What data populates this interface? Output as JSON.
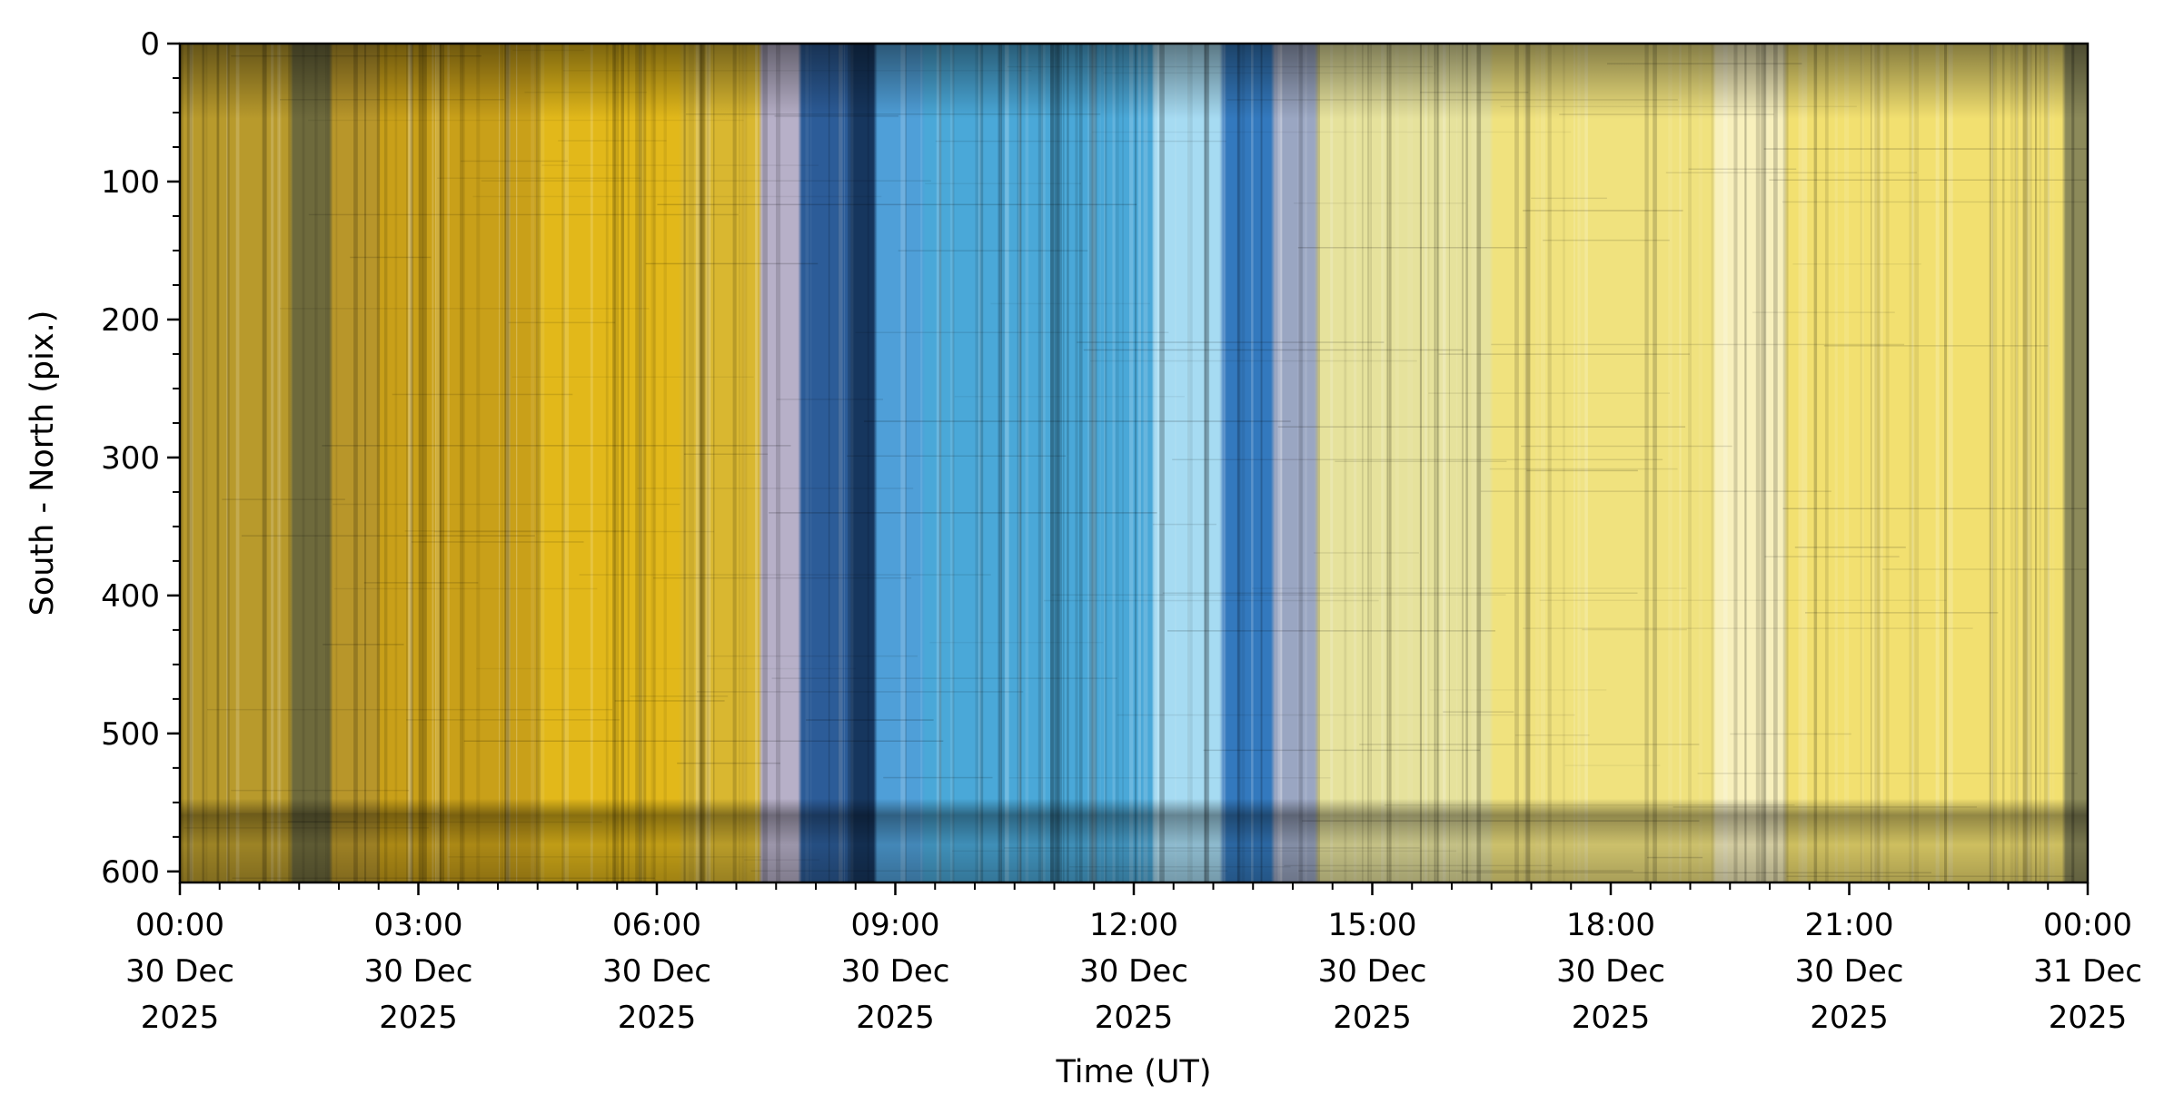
{
  "chart_data": {
    "type": "heatmap",
    "title": "",
    "xlabel": "Time (UT)",
    "ylabel": "South - North (pix.)",
    "x_unit": "hours since 30 Dec 2025 00:00 UT",
    "xlim": [
      0,
      24
    ],
    "ylim": [
      608,
      0
    ],
    "x_ticks": [
      {
        "value": 0,
        "lines": [
          "00:00",
          "30 Dec",
          "2025"
        ]
      },
      {
        "value": 3,
        "lines": [
          "03:00",
          "30 Dec",
          "2025"
        ]
      },
      {
        "value": 6,
        "lines": [
          "06:00",
          "30 Dec",
          "2025"
        ]
      },
      {
        "value": 9,
        "lines": [
          "09:00",
          "30 Dec",
          "2025"
        ]
      },
      {
        "value": 12,
        "lines": [
          "12:00",
          "30 Dec",
          "2025"
        ]
      },
      {
        "value": 15,
        "lines": [
          "15:00",
          "30 Dec",
          "2025"
        ]
      },
      {
        "value": 18,
        "lines": [
          "18:00",
          "30 Dec",
          "2025"
        ]
      },
      {
        "value": 21,
        "lines": [
          "21:00",
          "30 Dec",
          "2025"
        ]
      },
      {
        "value": 24,
        "lines": [
          "00:00",
          "31 Dec",
          "2025"
        ]
      }
    ],
    "x_minor_step": 0.5,
    "y_ticks": [
      0,
      100,
      200,
      300,
      400,
      500,
      600
    ],
    "y_minor_step": 25,
    "grid": false,
    "legend": "none",
    "bands": [
      {
        "start": 0.0,
        "end": 1.4,
        "color": "#b89a2c"
      },
      {
        "start": 1.4,
        "end": 1.9,
        "color": "#6e6a3c"
      },
      {
        "start": 1.9,
        "end": 2.5,
        "color": "#b8962a"
      },
      {
        "start": 2.5,
        "end": 4.5,
        "color": "#c9a019"
      },
      {
        "start": 4.5,
        "end": 6.3,
        "color": "#e2b81a"
      },
      {
        "start": 6.3,
        "end": 7.3,
        "color": "#d9b730"
      },
      {
        "start": 7.3,
        "end": 7.8,
        "color": "#b7b0c8"
      },
      {
        "start": 7.8,
        "end": 8.45,
        "color": "#2c5c98"
      },
      {
        "start": 8.45,
        "end": 8.75,
        "color": "#16365e"
      },
      {
        "start": 8.75,
        "end": 9.35,
        "color": "#4f9fd8"
      },
      {
        "start": 9.35,
        "end": 12.25,
        "color": "#4aa8d8"
      },
      {
        "start": 12.25,
        "end": 13.1,
        "color": "#a6dbf2"
      },
      {
        "start": 13.1,
        "end": 13.75,
        "color": "#3379be"
      },
      {
        "start": 13.75,
        "end": 14.3,
        "color": "#9aa6c2"
      },
      {
        "start": 14.3,
        "end": 16.5,
        "color": "#e6e29c"
      },
      {
        "start": 16.5,
        "end": 19.3,
        "color": "#f0e27e"
      },
      {
        "start": 19.3,
        "end": 20.2,
        "color": "#f8f0bc"
      },
      {
        "start": 20.2,
        "end": 23.7,
        "color": "#f2e070"
      },
      {
        "start": 23.7,
        "end": 24.0,
        "color": "#8c8a5a"
      }
    ],
    "horizontal_features": [
      {
        "y_start": 0,
        "y_end": 55,
        "kind": "dark band"
      },
      {
        "y_start": 555,
        "y_end": 580,
        "kind": "dark band"
      }
    ],
    "colors": {
      "axis": "#000000",
      "background": "#ffffff"
    }
  }
}
